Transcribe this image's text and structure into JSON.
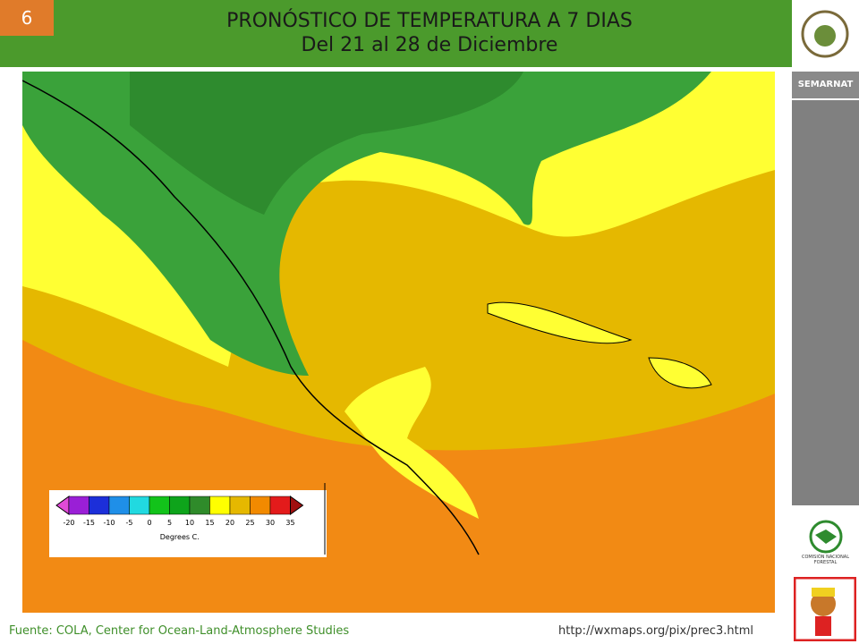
{
  "slide_number": "6",
  "header": {
    "title": "PRONÓSTICO DE TEMPERATURA A 7 DIAS",
    "subtitle": "Del 21 al 28 de Diciembre"
  },
  "sidebar": {
    "agency": "SEMARNAT",
    "logo_caption": "COMISIÓN NACIONAL FORESTAL"
  },
  "legend": {
    "ticks": [
      -20,
      -15,
      -10,
      -5,
      0,
      5,
      10,
      15,
      20,
      25,
      30,
      35
    ],
    "unit": "Degrees C.",
    "colors": [
      "#9a1fd6",
      "#1c2fd9",
      "#1f8fe8",
      "#21d9e0",
      "#12c31a",
      "#0ea41b",
      "#2f8b2a",
      "#ffff00",
      "#e5b800",
      "#f28a00",
      "#e31b1b"
    ]
  },
  "footer": {
    "source": "Fuente: COLA, Center  for Ocean-Land-Atmosphere Studies",
    "url": "http://wxmaps.org/pix/prec3.html"
  }
}
